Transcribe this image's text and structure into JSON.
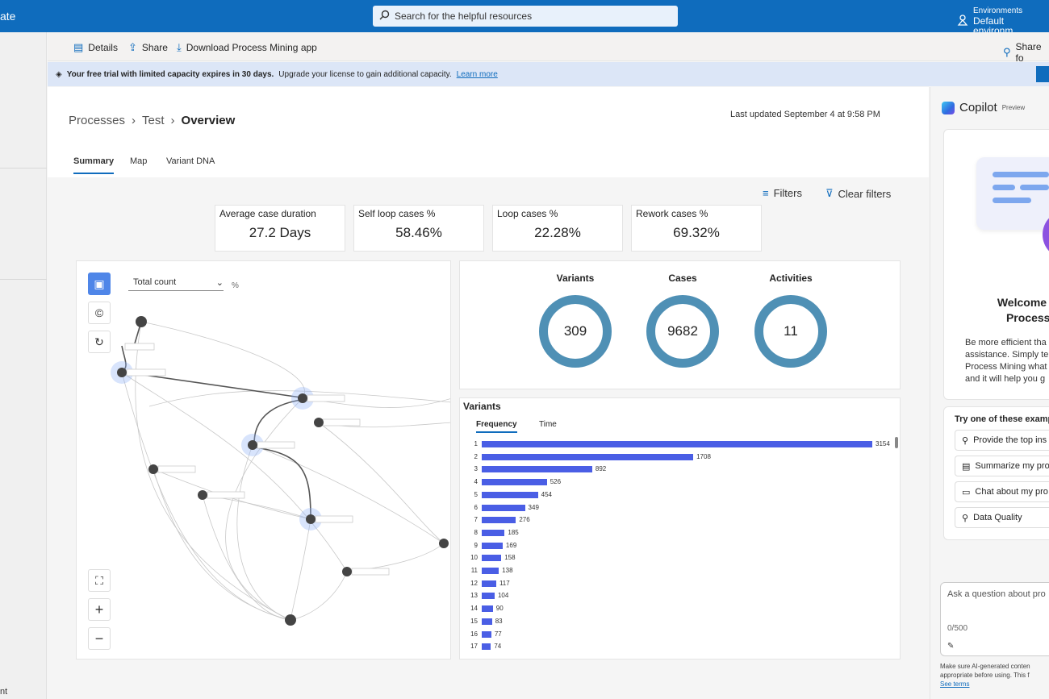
{
  "app": {
    "name_fragment": "ate"
  },
  "search": {
    "placeholder": "Search for the helpful resources"
  },
  "environment": {
    "label": "Environments",
    "value": "Default environm..."
  },
  "leftnav": {
    "footer_fragment": "nt"
  },
  "commandbar": {
    "details": "Details",
    "share": "Share",
    "download": "Download Process Mining app",
    "share_for": "Share fo"
  },
  "banner": {
    "bold": "Your free trial with limited capacity expires in 30 days.",
    "text": "Upgrade your license to gain additional capacity.",
    "link": "Learn more"
  },
  "breadcrumb": {
    "item1": "Processes",
    "item2": "Test",
    "current": "Overview"
  },
  "last_updated": "Last updated September 4 at 9:58 PM",
  "tabs": [
    "Summary",
    "Map",
    "Variant DNA"
  ],
  "filters": {
    "filters": "Filters",
    "clear": "Clear filters"
  },
  "kpis": [
    {
      "label": "Average case duration",
      "value": "27.2 Days"
    },
    {
      "label": "Self loop cases %",
      "value": "58.46%"
    },
    {
      "label": "Loop cases %",
      "value": "22.28%"
    },
    {
      "label": "Rework cases %",
      "value": "69.32%"
    }
  ],
  "map": {
    "metric": "Total count",
    "pct": "%"
  },
  "stats": [
    {
      "label": "Variants",
      "value": "309"
    },
    {
      "label": "Cases",
      "value": "9682"
    },
    {
      "label": "Activities",
      "value": "11"
    }
  ],
  "variants": {
    "title": "Variants",
    "tab_frequency": "Frequency",
    "tab_time": "Time"
  },
  "chart_data": {
    "type": "bar",
    "orientation": "horizontal",
    "title": "Variants",
    "categories": [
      "1",
      "2",
      "3",
      "4",
      "5",
      "6",
      "7",
      "8",
      "9",
      "10",
      "11",
      "12",
      "13",
      "14",
      "15",
      "16",
      "17"
    ],
    "values": [
      3154,
      1708,
      892,
      526,
      454,
      349,
      276,
      185,
      169,
      158,
      138,
      117,
      104,
      90,
      83,
      77,
      74
    ],
    "color": "#4a5ee5"
  },
  "copilot": {
    "title": "Copilot",
    "badge": "Preview",
    "welcome_line1": "Welcome to C",
    "welcome_line2": "Process M",
    "desc": [
      "Be more efficient tha",
      "assistance. Simply tel",
      "Process Mining what",
      "and it will help you g"
    ],
    "try_header": "Try one of these examp",
    "suggestions": [
      "Provide the top ins",
      "Summarize my pro",
      "Chat about my pro",
      "Data Quality"
    ],
    "ask_placeholder": "Ask a question about pro",
    "counter": "0/500",
    "disclaimer1": "Make sure AI-generated conten",
    "disclaimer2": "appropriate before using. This f",
    "see_terms": "See terms"
  }
}
